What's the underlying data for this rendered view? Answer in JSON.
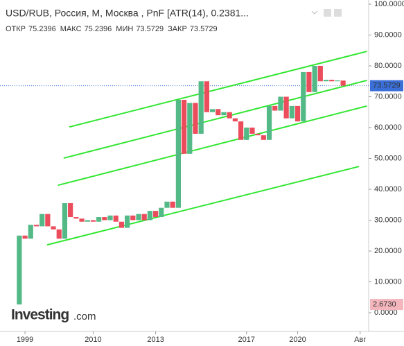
{
  "chart_data": {
    "type": "pnf",
    "title": "USD/RUB, Россия, M, Москва , PnF [ATR(14), 0.2381...",
    "ohlc": [
      {
        "label": "ОТКР",
        "value": 75.2396
      },
      {
        "label": "МАКС",
        "value": 75.2396
      },
      {
        "label": "МИН",
        "value": 73.5729
      },
      {
        "label": "ЗАКР",
        "value": 73.5729
      }
    ],
    "logo": "Investing",
    "logo_suffix": ".com",
    "up_color": "#53b987",
    "down_color": "#eb4d5c",
    "open": [
      2.673,
      25,
      24,
      28.5,
      28,
      32,
      28,
      27,
      24,
      35.5,
      31,
      30.5,
      29.5,
      30,
      29.5,
      31,
      30,
      31.5,
      29.5,
      27.5,
      31.5,
      30,
      32,
      30,
      33,
      31,
      34,
      36,
      34,
      69,
      51.5,
      68,
      58,
      75,
      65,
      66,
      64,
      65,
      63,
      62,
      56,
      60,
      58,
      57.5,
      56,
      67,
      65.5,
      70,
      63,
      67,
      62,
      78,
      71.5,
      80,
      75,
      75.5,
      75,
      75.2396
    ],
    "close": [
      25,
      24,
      28.5,
      28,
      32,
      28,
      27,
      24,
      35.5,
      31,
      30.5,
      29.5,
      30,
      29.5,
      31,
      30,
      31.5,
      29.5,
      27.5,
      31.5,
      30,
      32,
      30,
      33,
      31,
      34,
      36,
      34,
      69,
      51.5,
      68,
      58,
      75,
      65,
      66,
      64,
      65,
      63,
      62,
      56,
      60,
      58,
      57.5,
      56,
      67,
      65.5,
      70,
      63,
      67,
      62,
      78,
      71.5,
      80,
      75,
      75.5,
      75,
      75.3,
      73.5729
    ],
    "trend_color": "#33e633",
    "trend_lines": [
      {
        "x": [
          8.8,
          61.2
        ],
        "values": [
          60.2,
          84.7
        ]
      },
      {
        "x": [
          7.8,
          61.2
        ],
        "values": [
          50.1,
          75.3
        ]
      },
      {
        "x": [
          6.8,
          61.2
        ],
        "values": [
          41.3,
          67.0
        ]
      },
      {
        "x": [
          4.9,
          59.8
        ],
        "values": [
          22.0,
          47.4
        ]
      }
    ],
    "last_price": {
      "value": 73.5729,
      "label": "73.5729",
      "color": "#3a6fd8"
    },
    "first_price": {
      "value": 2.673,
      "label": "2.6730",
      "color": "#f4b6bd"
    },
    "xlim": [
      -3.4,
      61.5
    ],
    "xticks": [
      {
        "value": 1,
        "label": "1999"
      },
      {
        "value": 13,
        "label": "2010"
      },
      {
        "value": 24,
        "label": "2013"
      },
      {
        "value": 40,
        "label": "2017"
      },
      {
        "value": 49,
        "label": "2020"
      },
      {
        "value": 60,
        "label": "Авг"
      }
    ],
    "ylim": [
      0,
      100
    ],
    "yticks": [
      {
        "value": 0,
        "label": "0.0000"
      },
      {
        "value": 10,
        "label": "10.0000"
      },
      {
        "value": 20,
        "label": "20.0000"
      },
      {
        "value": 30,
        "label": "30.0000"
      },
      {
        "value": 40,
        "label": "40.0000"
      },
      {
        "value": 50,
        "label": "50.0000"
      },
      {
        "value": 60,
        "label": "60.0000"
      },
      {
        "value": 70,
        "label": "70.0000"
      },
      {
        "value": 80,
        "label": "80.0000"
      },
      {
        "value": 90,
        "label": "90.0000"
      },
      {
        "value": 100,
        "label": "100.0000"
      }
    ]
  }
}
